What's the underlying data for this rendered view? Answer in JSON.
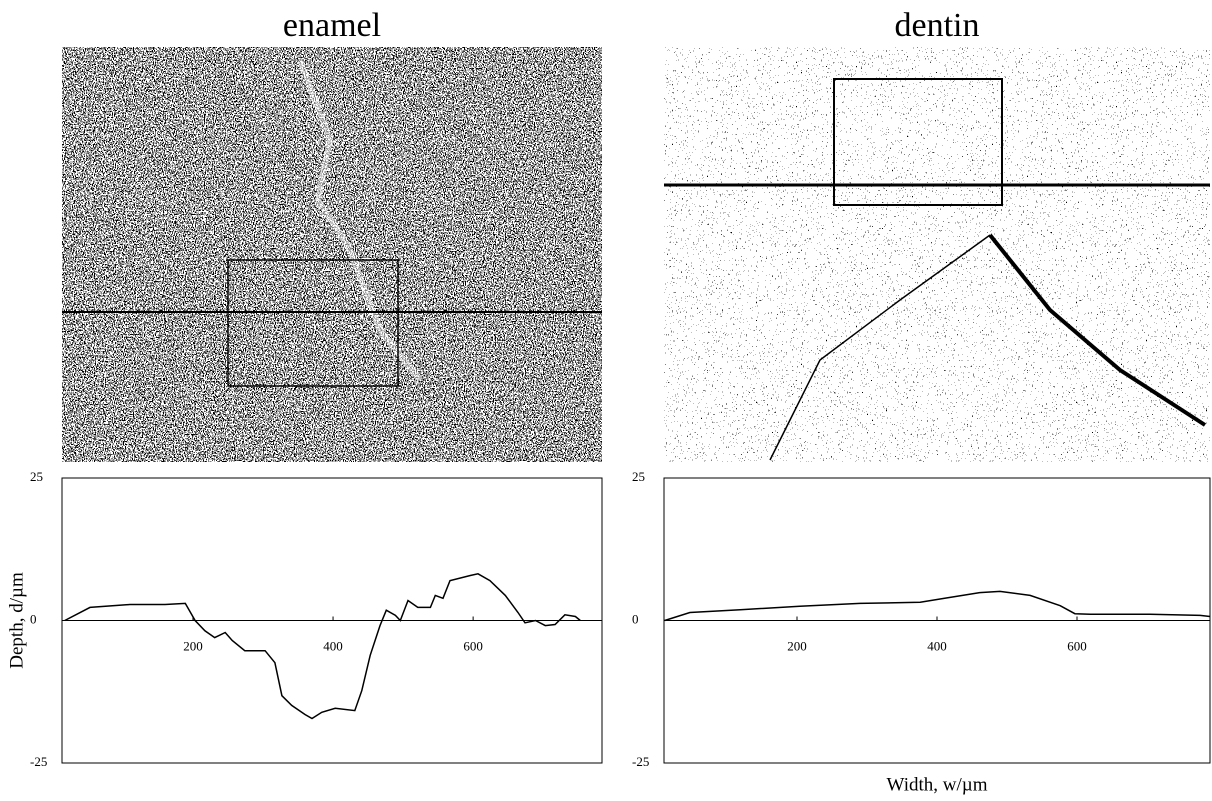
{
  "chart_data": [
    {
      "type": "line",
      "title": "enamel",
      "ylabel": "Depth, d/µm",
      "x": [
        17,
        53,
        110,
        160,
        189,
        203,
        217,
        231,
        246,
        256,
        274,
        303,
        317,
        327,
        341,
        360,
        370,
        384,
        403,
        431,
        441,
        453,
        467,
        476,
        489,
        496,
        507,
        521,
        539,
        546,
        557,
        567,
        596,
        607,
        624,
        646,
        664,
        674,
        689,
        703,
        717,
        731,
        746,
        753
      ],
      "values": [
        0,
        2.3,
        2.8,
        2.8,
        3,
        0,
        -1.8,
        -3,
        -2.1,
        -3.5,
        -5.3,
        -5.3,
        -7.4,
        -13.2,
        -14.9,
        -16.5,
        -17.2,
        -16.1,
        -15.4,
        -15.8,
        -12.3,
        -6.1,
        -0.9,
        1.8,
        0.9,
        0,
        3.5,
        2.3,
        2.3,
        4.4,
        3.9,
        7,
        7.9,
        8.2,
        7,
        4.4,
        1.4,
        -0.4,
        0,
        -0.9,
        -0.7,
        1,
        0.7,
        0
      ],
      "color": "#000000",
      "xlim": [
        13,
        784
      ],
      "ylim": [
        -25,
        25
      ],
      "xticks": [
        200,
        400,
        600
      ],
      "yticks": [
        -25,
        0,
        25
      ]
    },
    {
      "type": "line",
      "title": "dentin",
      "xlabel": "Width, w/µm",
      "x": [
        11,
        47,
        119,
        204,
        290,
        376,
        411,
        461,
        490,
        533,
        576,
        597,
        619,
        704,
        776,
        790
      ],
      "values": [
        0,
        1.4,
        1.9,
        2.5,
        3,
        3.2,
        3.9,
        4.9,
        5.1,
        4.4,
        2.6,
        1.2,
        1.1,
        1.1,
        0.9,
        0.7
      ],
      "color": "#000000",
      "xlim": [
        10,
        790
      ],
      "ylim": [
        -25,
        25
      ],
      "xticks": [
        200,
        400,
        600
      ],
      "yticks": [
        -25,
        0,
        25
      ]
    }
  ]
}
